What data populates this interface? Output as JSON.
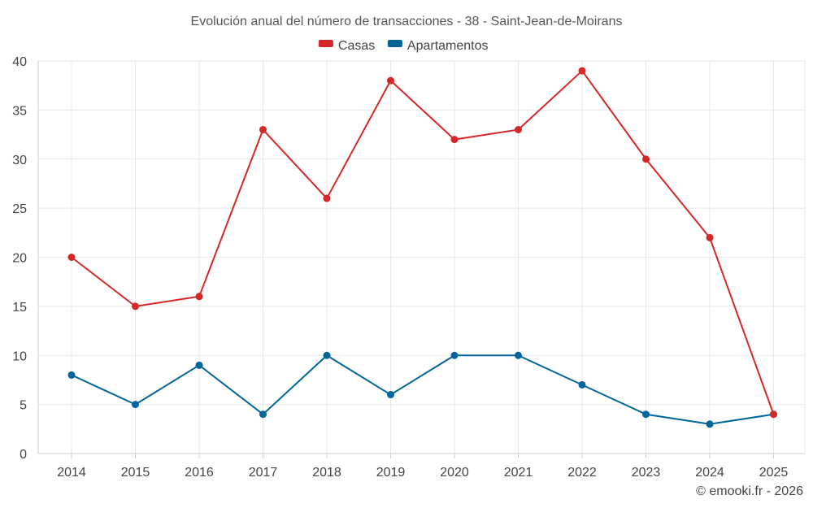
{
  "chart_data": {
    "type": "line",
    "title": "Evolución anual del número de transacciones - 38 - Saint-Jean-de-Moirans",
    "categories": [
      "2014",
      "2015",
      "2016",
      "2017",
      "2018",
      "2019",
      "2020",
      "2021",
      "2022",
      "2023",
      "2024",
      "2025"
    ],
    "series": [
      {
        "name": "Casas",
        "color": "#d62728",
        "values": [
          20,
          15,
          16,
          33,
          26,
          38,
          32,
          33,
          39,
          30,
          22,
          4
        ]
      },
      {
        "name": "Apartamentos",
        "color": "#006699",
        "values": [
          8,
          5,
          9,
          4,
          10,
          6,
          10,
          10,
          7,
          4,
          3,
          4
        ]
      }
    ],
    "ylim": [
      0,
      40
    ],
    "yticks": [
      0,
      5,
      10,
      15,
      20,
      25,
      30,
      35,
      40
    ],
    "grid": true,
    "legend_position": "top-center",
    "xlabel": "",
    "ylabel": ""
  },
  "credit": "© emooki.fr - 2026"
}
